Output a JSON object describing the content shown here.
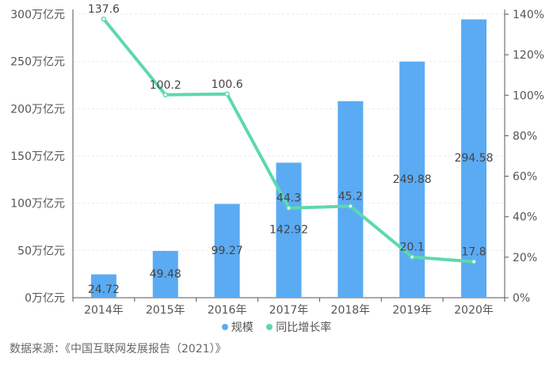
{
  "chart_data": {
    "type": "bar",
    "categories": [
      "2014年",
      "2015年",
      "2016年",
      "2017年",
      "2018年",
      "2019年",
      "2020年"
    ],
    "series": [
      {
        "name": "规模",
        "type": "bar",
        "axis": "left",
        "color": "#5aabf4",
        "values": [
          24.72,
          49.48,
          99.27,
          142.92,
          208,
          249.88,
          294.58
        ],
        "labels": [
          "24.72",
          "49.48",
          "99.27",
          "142.92",
          "",
          "249.88",
          "294.58"
        ]
      },
      {
        "name": "同比增长率",
        "type": "line",
        "axis": "right",
        "color": "#5dd8ae",
        "values": [
          137.6,
          100.2,
          100.6,
          44.3,
          45.2,
          20.1,
          17.8
        ],
        "labels": [
          "137.6",
          "100.2",
          "100.6",
          "44.3",
          "45.2",
          "20.1",
          "17.8"
        ]
      }
    ],
    "y_left": {
      "ylim": [
        0,
        300
      ],
      "ticks": [
        "0万亿元",
        "50万亿元",
        "100万亿元",
        "150万亿元",
        "200万亿元",
        "250万亿元",
        "300万亿元"
      ]
    },
    "y_right": {
      "ylim": [
        0,
        140
      ],
      "ticks": [
        "0%",
        "20%",
        "40%",
        "60%",
        "80%",
        "100%",
        "120%",
        "140%"
      ]
    },
    "grid": true,
    "legend_position": "bottom-center"
  },
  "source_text": "数据来源：《中国互联网发展报告（2021）》"
}
